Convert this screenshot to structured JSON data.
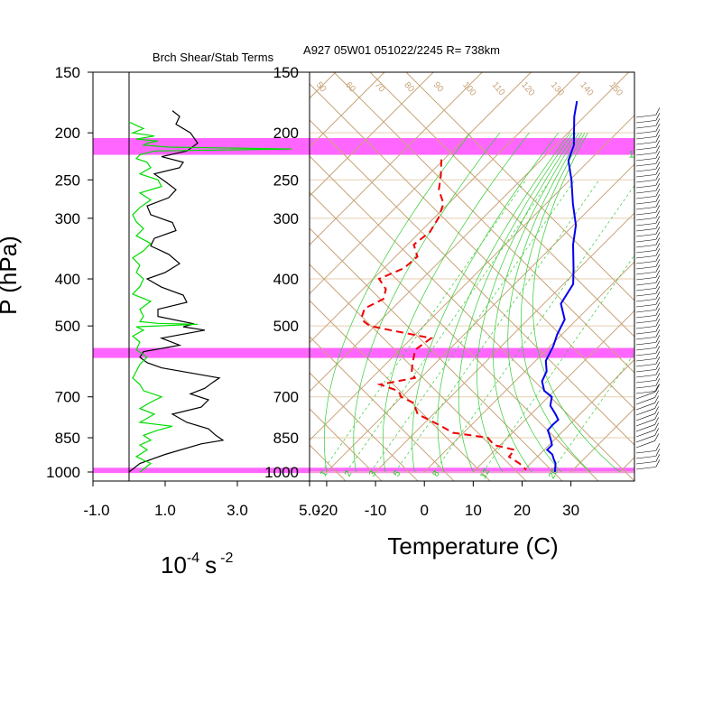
{
  "title": "A927 05W01 051022/2245 R= 738km",
  "chart_data": [
    {
      "type": "line",
      "title": "Brch Shear/Stab Terms",
      "ylabel": "P (hPa)",
      "xlabel_parts": {
        "base": "10",
        "exp1": "-4",
        "unit": "s",
        "exp2": "-2"
      },
      "pressure_ticks": [
        150,
        200,
        250,
        300,
        400,
        500,
        700,
        850,
        1000
      ],
      "pressure_tick_labels": [
        "150",
        "200",
        "250",
        "300",
        "400",
        "500",
        "700",
        "850",
        "1000"
      ],
      "x_ticks": [
        -1.0,
        1.0,
        3.0,
        5.0
      ],
      "x_tick_labels": [
        "-1.0",
        "1.0",
        "3.0",
        "5.0"
      ],
      "xlim": [
        -1.0,
        5.0
      ],
      "ylim": [
        150,
        1000
      ],
      "y_scale": "log-pressure",
      "highlight_bands": [
        [
          205,
          222
        ],
        [
          555,
          582
        ],
        [
          980,
          1005
        ]
      ],
      "highlight_color": "#ff66ff",
      "series": [
        {
          "color": "#000000",
          "x": [
            1.2,
            1.4,
            1.3,
            1.7,
            1.9,
            1.6,
            0.9,
            1.5,
            1.4,
            0.7,
            1.0,
            1.3,
            1.1,
            0.5,
            0.6,
            1.2,
            1.3,
            0.7,
            0.6,
            1.1,
            1.4,
            1.0,
            0.5,
            0.9,
            1.5,
            1.6,
            0.8,
            0.8,
            1.8,
            1.5,
            2.1,
            0.9,
            1.4,
            0.4,
            0.3,
            0.5,
            0.9,
            1.7,
            2.5,
            2.3,
            2.1,
            1.7,
            2.2,
            2.0,
            1.2,
            1.6,
            2.2,
            2.4,
            2.6,
            2.0,
            1.0,
            0.3,
            0.0
          ],
          "p": [
            180,
            185,
            192,
            200,
            210,
            218,
            224,
            230,
            236,
            243,
            252,
            262,
            272,
            283,
            295,
            306,
            318,
            330,
            342,
            356,
            372,
            388,
            400,
            416,
            432,
            447,
            462,
            478,
            495,
            502,
            510,
            530,
            548,
            565,
            580,
            595,
            610,
            625,
            640,
            655,
            672,
            690,
            710,
            735,
            760,
            790,
            815,
            840,
            860,
            875,
            920,
            960,
            1000
          ]
        },
        {
          "color": "#00dd00",
          "x": [
            0.0,
            0.4,
            0.1,
            0.7,
            0.2,
            0.8,
            0.5,
            0.4,
            1.1,
            4.5,
            0.7,
            0.5,
            0.3,
            0.2,
            0.5,
            0.6,
            0.3,
            0.8,
            0.9,
            0.3,
            0.6,
            0.3,
            0.1,
            0.2,
            0.4,
            0.2,
            0.6,
            0.4,
            0.1,
            0.3,
            0.2,
            0.4,
            0.3,
            0.1,
            0.6,
            0.3,
            0.4,
            0.3,
            0.8,
            1.9,
            0.2,
            0.4,
            0.1,
            0.3,
            0.2,
            0.5,
            0.3,
            0.2,
            0.1,
            0.3,
            0.4,
            0.9,
            0.6,
            0.3,
            0.7,
            0.5,
            0.3,
            1.2,
            0.8,
            0.4,
            0.6,
            0.3,
            0.5,
            0.2,
            0.6,
            0.3
          ],
          "p": [
            190,
            196,
            200,
            203,
            206,
            208,
            210,
            212,
            214,
            216,
            218,
            220,
            222,
            226,
            230,
            236,
            243,
            250,
            258,
            266,
            275,
            285,
            295,
            305,
            315,
            326,
            338,
            350,
            362,
            375,
            388,
            400,
            415,
            430,
            445,
            462,
            478,
            490,
            494,
            496,
            502,
            510,
            525,
            540,
            560,
            580,
            600,
            620,
            640,
            660,
            680,
            700,
            718,
            740,
            760,
            775,
            790,
            805,
            820,
            840,
            860,
            880,
            900,
            930,
            960,
            1000
          ]
        }
      ]
    },
    {
      "type": "line",
      "title": "A927 05W01 051022/2245 R= 738km",
      "xlabel": "Temperature (C)",
      "pressure_ticks": [
        150,
        200,
        250,
        300,
        400,
        500,
        700,
        850,
        1000
      ],
      "pressure_tick_labels": [
        "150",
        "200",
        "250",
        "300",
        "400",
        "500",
        "700",
        "850",
        "1000"
      ],
      "x_ticks": [
        -20,
        -10,
        0,
        10,
        20,
        30
      ],
      "x_tick_labels": [
        "-20",
        "-10",
        "0",
        "10",
        "20",
        "30"
      ],
      "xlim": [
        -23.5,
        43
      ],
      "ylim": [
        150,
        1000
      ],
      "y_scale": "log-pressure",
      "skew": true,
      "mixing_ratio_labels": [
        "12",
        "16",
        "20",
        "24",
        "28",
        "32"
      ],
      "mixing_ratio_label_temps": [
        -21,
        -12.5,
        -3.5,
        6.5,
        17.5,
        29
      ],
      "mixing_ratio_label_p": 227,
      "bottom_mixing_labels": [
        "1",
        "2",
        "3",
        "5",
        "8",
        "12",
        "20"
      ],
      "bottom_mixing_temps": [
        -21,
        -16,
        -11,
        -6,
        2,
        12,
        26
      ],
      "theta_labels": [
        "50",
        "60",
        "70",
        "80",
        "90",
        "100",
        "110",
        "120",
        "130",
        "140",
        "150"
      ],
      "highlight_bands": [
        [
          205,
          222
        ],
        [
          555,
          582
        ],
        [
          980,
          1005
        ]
      ],
      "highlight_color": "#ff66ff",
      "colors": {
        "isotherm": "#c8a47a",
        "isobar": "#e6cfb0",
        "moist": "#33cc33",
        "mixing": "#33cc33"
      },
      "series": [
        {
          "name": "temperature",
          "color": "#0000ee",
          "style": "solid",
          "t": [
            -44.7,
            -42.1,
            -38.8,
            -36.3,
            -34.3,
            -29.7,
            -24.5,
            -19.5,
            -16.1,
            -11.2,
            -8.0,
            -6.5,
            -2.5,
            -1.0,
            0.6,
            2.1,
            4.4,
            5.5,
            7.9,
            10.7,
            12.2,
            15.0,
            16.7,
            16.6,
            16.7,
            18.1,
            19.4,
            20.6,
            20.6,
            22.6,
            23.8,
            25.1,
            26.7
          ],
          "p": [
            172,
            185,
            200,
            212,
            228,
            250,
            280,
            310,
            340,
            380,
            410,
            450,
            485,
            520,
            550,
            590,
            620,
            650,
            680,
            700,
            730,
            760,
            780,
            800,
            820,
            840,
            860,
            880,
            900,
            920,
            940,
            960,
            1000
          ]
        },
        {
          "name": "dewpoint",
          "color": "#ee0000",
          "style": "dashed",
          "t": [
            -60.5,
            -57.3,
            -54.8,
            -51.0,
            -49.1,
            -48.0,
            -48.7,
            -45.5,
            -45.9,
            -48.8,
            -45.3,
            -43.8,
            -45.7,
            -44.5,
            -43.1,
            -41.1,
            -36.0,
            -26.0,
            -26.9,
            -24.5,
            -23.2,
            -21.2,
            -27.0,
            -22.1,
            -21.0,
            -20.2,
            -16.4,
            -13.2,
            -6.6,
            -2.2,
            6.0,
            8.7,
            13.9,
            14.2,
            17.7,
            20.4
          ],
          "p": [
            227,
            245,
            262,
            280,
            300,
            320,
            340,
            360,
            380,
            400,
            420,
            440,
            460,
            480,
            490,
            500,
            510,
            530,
            560,
            600,
            620,
            640,
            660,
            680,
            690,
            700,
            720,
            760,
            800,
            830,
            850,
            880,
            900,
            930,
            960,
            990
          ]
        }
      ],
      "wind_barbs_note": "wind barbs drawn along right edge"
    }
  ]
}
